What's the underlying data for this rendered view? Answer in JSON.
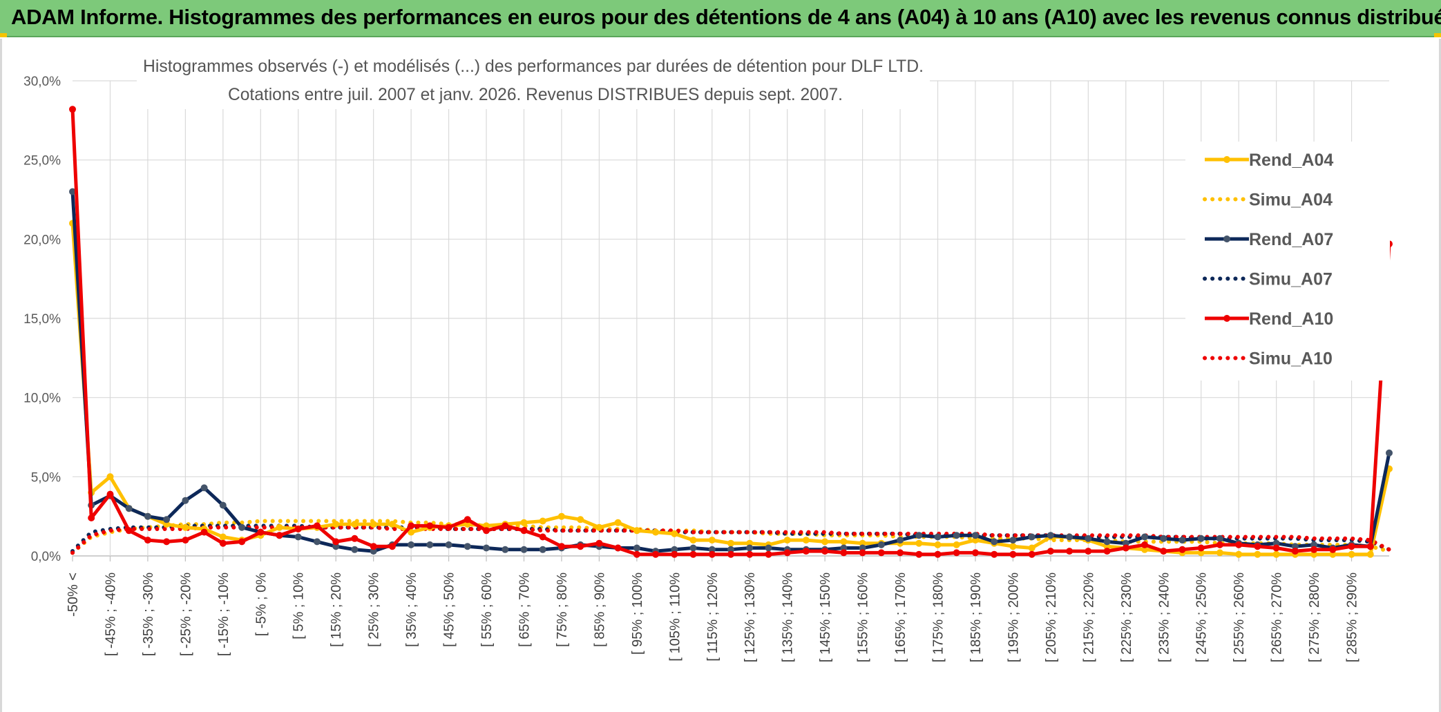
{
  "banner": {
    "title": "ADAM Informe. Histogrammes des performances en euros pour des détentions de 4 ans (A04) à 10 ans (A10) avec les revenus connus distribués"
  },
  "colors": {
    "banner_bg": "#7dc97a",
    "a04": "#ffc000",
    "a07": "#0d2859",
    "a10": "#ee0000",
    "grid": "#d9d9d9"
  },
  "chart_data": {
    "type": "line",
    "title_line1": "Histogrammes observés (-) et modélisés (...) des performances par durées de détention pour DLF LTD.",
    "title_line2": "Cotations entre juil. 2007 et janv. 2026. Revenus DISTRIBUES depuis sept. 2007.",
    "ylim": [
      0,
      30
    ],
    "yticks": [
      "0,0%",
      "5,0%",
      "10,0%",
      "15,0%",
      "20,0%",
      "25,0%",
      "30,0%"
    ],
    "x_labels": [
      "-50% <",
      "[ -45% ; -40%",
      "[ -35% ; -30%",
      "[ -25% ; -20%",
      "[ -15% ; -10%",
      "[ -5% ; 0%",
      "[ 5% ; 10%",
      "[ 15% ; 20%",
      "[ 25% ; 30%",
      "[ 35% ; 40%",
      "[ 45% ; 50%",
      "[ 55% ; 60%",
      "[ 65% ; 70%",
      "[ 75% ; 80%",
      "[ 85% ; 90%",
      "[ 95% ; 100%",
      "[ 105% ; 110%",
      "[ 115% ; 120%",
      "[ 125% ; 130%",
      "[ 135% ; 140%",
      "[ 145% ; 150%",
      "[ 155% ; 160%",
      "[ 165% ; 170%",
      "[ 175% ; 180%",
      "[ 185% ; 190%",
      "[ 195% ; 200%",
      "[ 205% ; 210%",
      "[ 215% ; 220%",
      "[ 225% ; 230%",
      "[ 235% ; 240%",
      "[ 245% ; 250%",
      "[ 255% ; 260%",
      "[ 265% ; 270%",
      "[ 275% ; 280%",
      "[ 285% ; 290%"
    ],
    "n_categories": 71,
    "legend": [
      "Rend_A04",
      "Simu_A04",
      "Rend_A07",
      "Simu_A07",
      "Rend_A10",
      "Simu_A10"
    ],
    "legend_position": "right",
    "series": [
      {
        "name": "Rend_A04",
        "style": "solid",
        "color": "#ffc000",
        "values": [
          21.0,
          4.0,
          5.0,
          3.0,
          2.5,
          2.0,
          1.8,
          1.7,
          1.2,
          1.0,
          1.3,
          1.8,
          1.7,
          1.8,
          2.0,
          2.0,
          2.0,
          2.0,
          1.5,
          1.8,
          1.9,
          2.0,
          1.9,
          2.0,
          2.1,
          2.2,
          2.5,
          2.3,
          1.8,
          2.1,
          1.6,
          1.5,
          1.4,
          1.0,
          1.0,
          0.8,
          0.8,
          0.7,
          1.0,
          1.0,
          0.9,
          0.9,
          0.8,
          0.8,
          0.8,
          0.8,
          0.7,
          0.7,
          1.0,
          0.8,
          0.6,
          0.5,
          1.2,
          1.2,
          1.0,
          0.6,
          0.5,
          0.4,
          0.3,
          0.2,
          0.2,
          0.2,
          0.1,
          0.1,
          0.1,
          0.1,
          0.1,
          0.1,
          0.1,
          0.1,
          5.5
        ]
      },
      {
        "name": "Simu_A04",
        "style": "dotted",
        "color": "#ffc000",
        "values": [
          0.2,
          1.2,
          1.5,
          1.7,
          1.8,
          1.9,
          2.0,
          2.0,
          2.1,
          2.1,
          2.2,
          2.2,
          2.2,
          2.2,
          2.2,
          2.2,
          2.2,
          2.2,
          2.1,
          2.1,
          2.0,
          2.0,
          1.9,
          1.9,
          1.9,
          1.8,
          1.8,
          1.8,
          1.7,
          1.7,
          1.7,
          1.6,
          1.6,
          1.6,
          1.5,
          1.5,
          1.5,
          1.4,
          1.4,
          1.4,
          1.3,
          1.3,
          1.3,
          1.3,
          1.2,
          1.2,
          1.2,
          1.2,
          1.1,
          1.1,
          1.1,
          1.1,
          1.0,
          1.0,
          1.0,
          1.0,
          0.9,
          0.9,
          0.9,
          0.9,
          0.9,
          0.8,
          0.8,
          0.8,
          0.8,
          0.7,
          0.7,
          0.7,
          0.7,
          0.6,
          0.3
        ]
      },
      {
        "name": "Rend_A07",
        "style": "solid",
        "color": "#0d2859",
        "values": [
          23.0,
          3.2,
          3.8,
          3.0,
          2.5,
          2.3,
          3.5,
          4.3,
          3.2,
          1.8,
          1.5,
          1.3,
          1.2,
          0.9,
          0.6,
          0.4,
          0.3,
          0.7,
          0.7,
          0.7,
          0.7,
          0.6,
          0.5,
          0.4,
          0.4,
          0.4,
          0.5,
          0.7,
          0.6,
          0.5,
          0.5,
          0.3,
          0.4,
          0.5,
          0.4,
          0.4,
          0.5,
          0.5,
          0.4,
          0.4,
          0.4,
          0.5,
          0.5,
          0.7,
          1.0,
          1.3,
          1.2,
          1.3,
          1.3,
          0.9,
          1.0,
          1.2,
          1.3,
          1.2,
          1.1,
          0.9,
          0.8,
          1.2,
          1.1,
          1.0,
          1.1,
          1.1,
          0.8,
          0.7,
          0.8,
          0.6,
          0.7,
          0.5,
          0.7,
          0.6,
          6.5
        ]
      },
      {
        "name": "Simu_A07",
        "style": "dotted",
        "color": "#0d2859",
        "values": [
          0.3,
          1.5,
          1.7,
          1.8,
          1.8,
          1.8,
          1.9,
          1.9,
          1.9,
          1.9,
          1.9,
          1.9,
          1.9,
          1.8,
          1.8,
          1.8,
          1.8,
          1.8,
          1.8,
          1.8,
          1.7,
          1.7,
          1.7,
          1.7,
          1.7,
          1.7,
          1.6,
          1.6,
          1.6,
          1.6,
          1.6,
          1.6,
          1.5,
          1.5,
          1.5,
          1.5,
          1.5,
          1.5,
          1.4,
          1.4,
          1.4,
          1.4,
          1.4,
          1.4,
          1.4,
          1.3,
          1.3,
          1.3,
          1.3,
          1.3,
          1.3,
          1.3,
          1.3,
          1.2,
          1.2,
          1.2,
          1.2,
          1.2,
          1.2,
          1.2,
          1.1,
          1.1,
          1.1,
          1.1,
          1.1,
          1.1,
          1.0,
          1.0,
          1.0,
          0.9,
          0.4
        ]
      },
      {
        "name": "Rend_A10",
        "style": "solid",
        "color": "#ee0000",
        "values": [
          28.2,
          2.4,
          3.9,
          1.6,
          1.0,
          0.9,
          1.0,
          1.5,
          0.8,
          0.9,
          1.5,
          1.3,
          1.7,
          1.9,
          0.9,
          1.1,
          0.6,
          0.6,
          1.9,
          1.9,
          1.8,
          2.3,
          1.6,
          1.9,
          1.6,
          1.2,
          0.6,
          0.6,
          0.8,
          0.5,
          0.1,
          0.1,
          0.1,
          0.1,
          0.1,
          0.1,
          0.1,
          0.1,
          0.2,
          0.3,
          0.3,
          0.2,
          0.2,
          0.2,
          0.2,
          0.1,
          0.1,
          0.2,
          0.2,
          0.1,
          0.1,
          0.1,
          0.3,
          0.3,
          0.3,
          0.3,
          0.5,
          0.7,
          0.3,
          0.4,
          0.5,
          0.7,
          0.7,
          0.6,
          0.5,
          0.3,
          0.4,
          0.4,
          0.6,
          0.6,
          19.7
        ]
      },
      {
        "name": "Simu_A10",
        "style": "dotted",
        "color": "#ee0000",
        "values": [
          0.2,
          1.3,
          1.6,
          1.7,
          1.7,
          1.7,
          1.7,
          1.8,
          1.8,
          1.8,
          1.8,
          1.8,
          1.8,
          1.8,
          1.8,
          1.8,
          1.8,
          1.7,
          1.7,
          1.7,
          1.7,
          1.7,
          1.7,
          1.7,
          1.7,
          1.6,
          1.6,
          1.6,
          1.6,
          1.6,
          1.6,
          1.6,
          1.6,
          1.5,
          1.5,
          1.5,
          1.5,
          1.5,
          1.5,
          1.5,
          1.5,
          1.4,
          1.4,
          1.4,
          1.4,
          1.4,
          1.4,
          1.4,
          1.4,
          1.3,
          1.3,
          1.3,
          1.3,
          1.3,
          1.3,
          1.3,
          1.3,
          1.3,
          1.2,
          1.2,
          1.2,
          1.2,
          1.2,
          1.2,
          1.2,
          1.2,
          1.1,
          1.1,
          1.1,
          1.0,
          0.4
        ]
      }
    ]
  }
}
